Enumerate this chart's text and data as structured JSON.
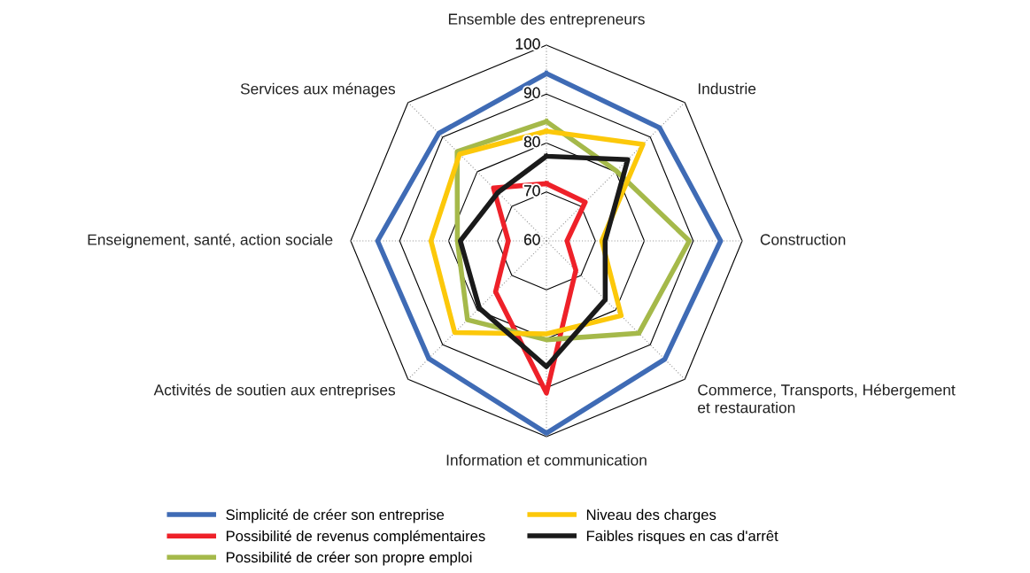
{
  "chart_data": {
    "type": "radar",
    "categories": [
      "Ensemble des entrepreneurs",
      "Industrie",
      "Construction",
      "Commerce, Transports, Hébergement\net restauration",
      "Information et communication",
      "Activités de soutien aux entreprises",
      "Enseignement, santé, action sociale",
      "Services aux ménages"
    ],
    "ylim": [
      60,
      100
    ],
    "yticks": [
      60,
      70,
      80,
      90,
      100
    ],
    "grid": true,
    "legend": "bottom",
    "series": [
      {
        "name": "Simplicité de créer son entreprise",
        "color": "#3f6bb5",
        "values": [
          94.2,
          92.7,
          95.6,
          94.2,
          99.3,
          94.0,
          94.5,
          91.1
        ]
      },
      {
        "name": "Possibilité de revenus complémentaires",
        "color": "#ee2129",
        "values": [
          71.7,
          71.2,
          64.2,
          68.5,
          91.1,
          74.7,
          67.8,
          75.3
        ]
      },
      {
        "name": "Possibilité de créer son propre emploi",
        "color": "#a5b94a",
        "values": [
          84.4,
          80.2,
          89.2,
          86.7,
          80.2,
          82.8,
          78.2,
          85.8
        ]
      },
      {
        "name": "Niveau des charges",
        "color": "#fcc80a",
        "values": [
          82.4,
          87.9,
          71.3,
          81.6,
          79.0,
          86.5,
          83.6,
          85.1
        ]
      },
      {
        "name": "Faibles risques en cas d'arrêt",
        "color": "#1a1a1a",
        "values": [
          77.3,
          83.5,
          72.0,
          77.0,
          85.7,
          79.4,
          77.6,
          74.0
        ]
      }
    ]
  }
}
